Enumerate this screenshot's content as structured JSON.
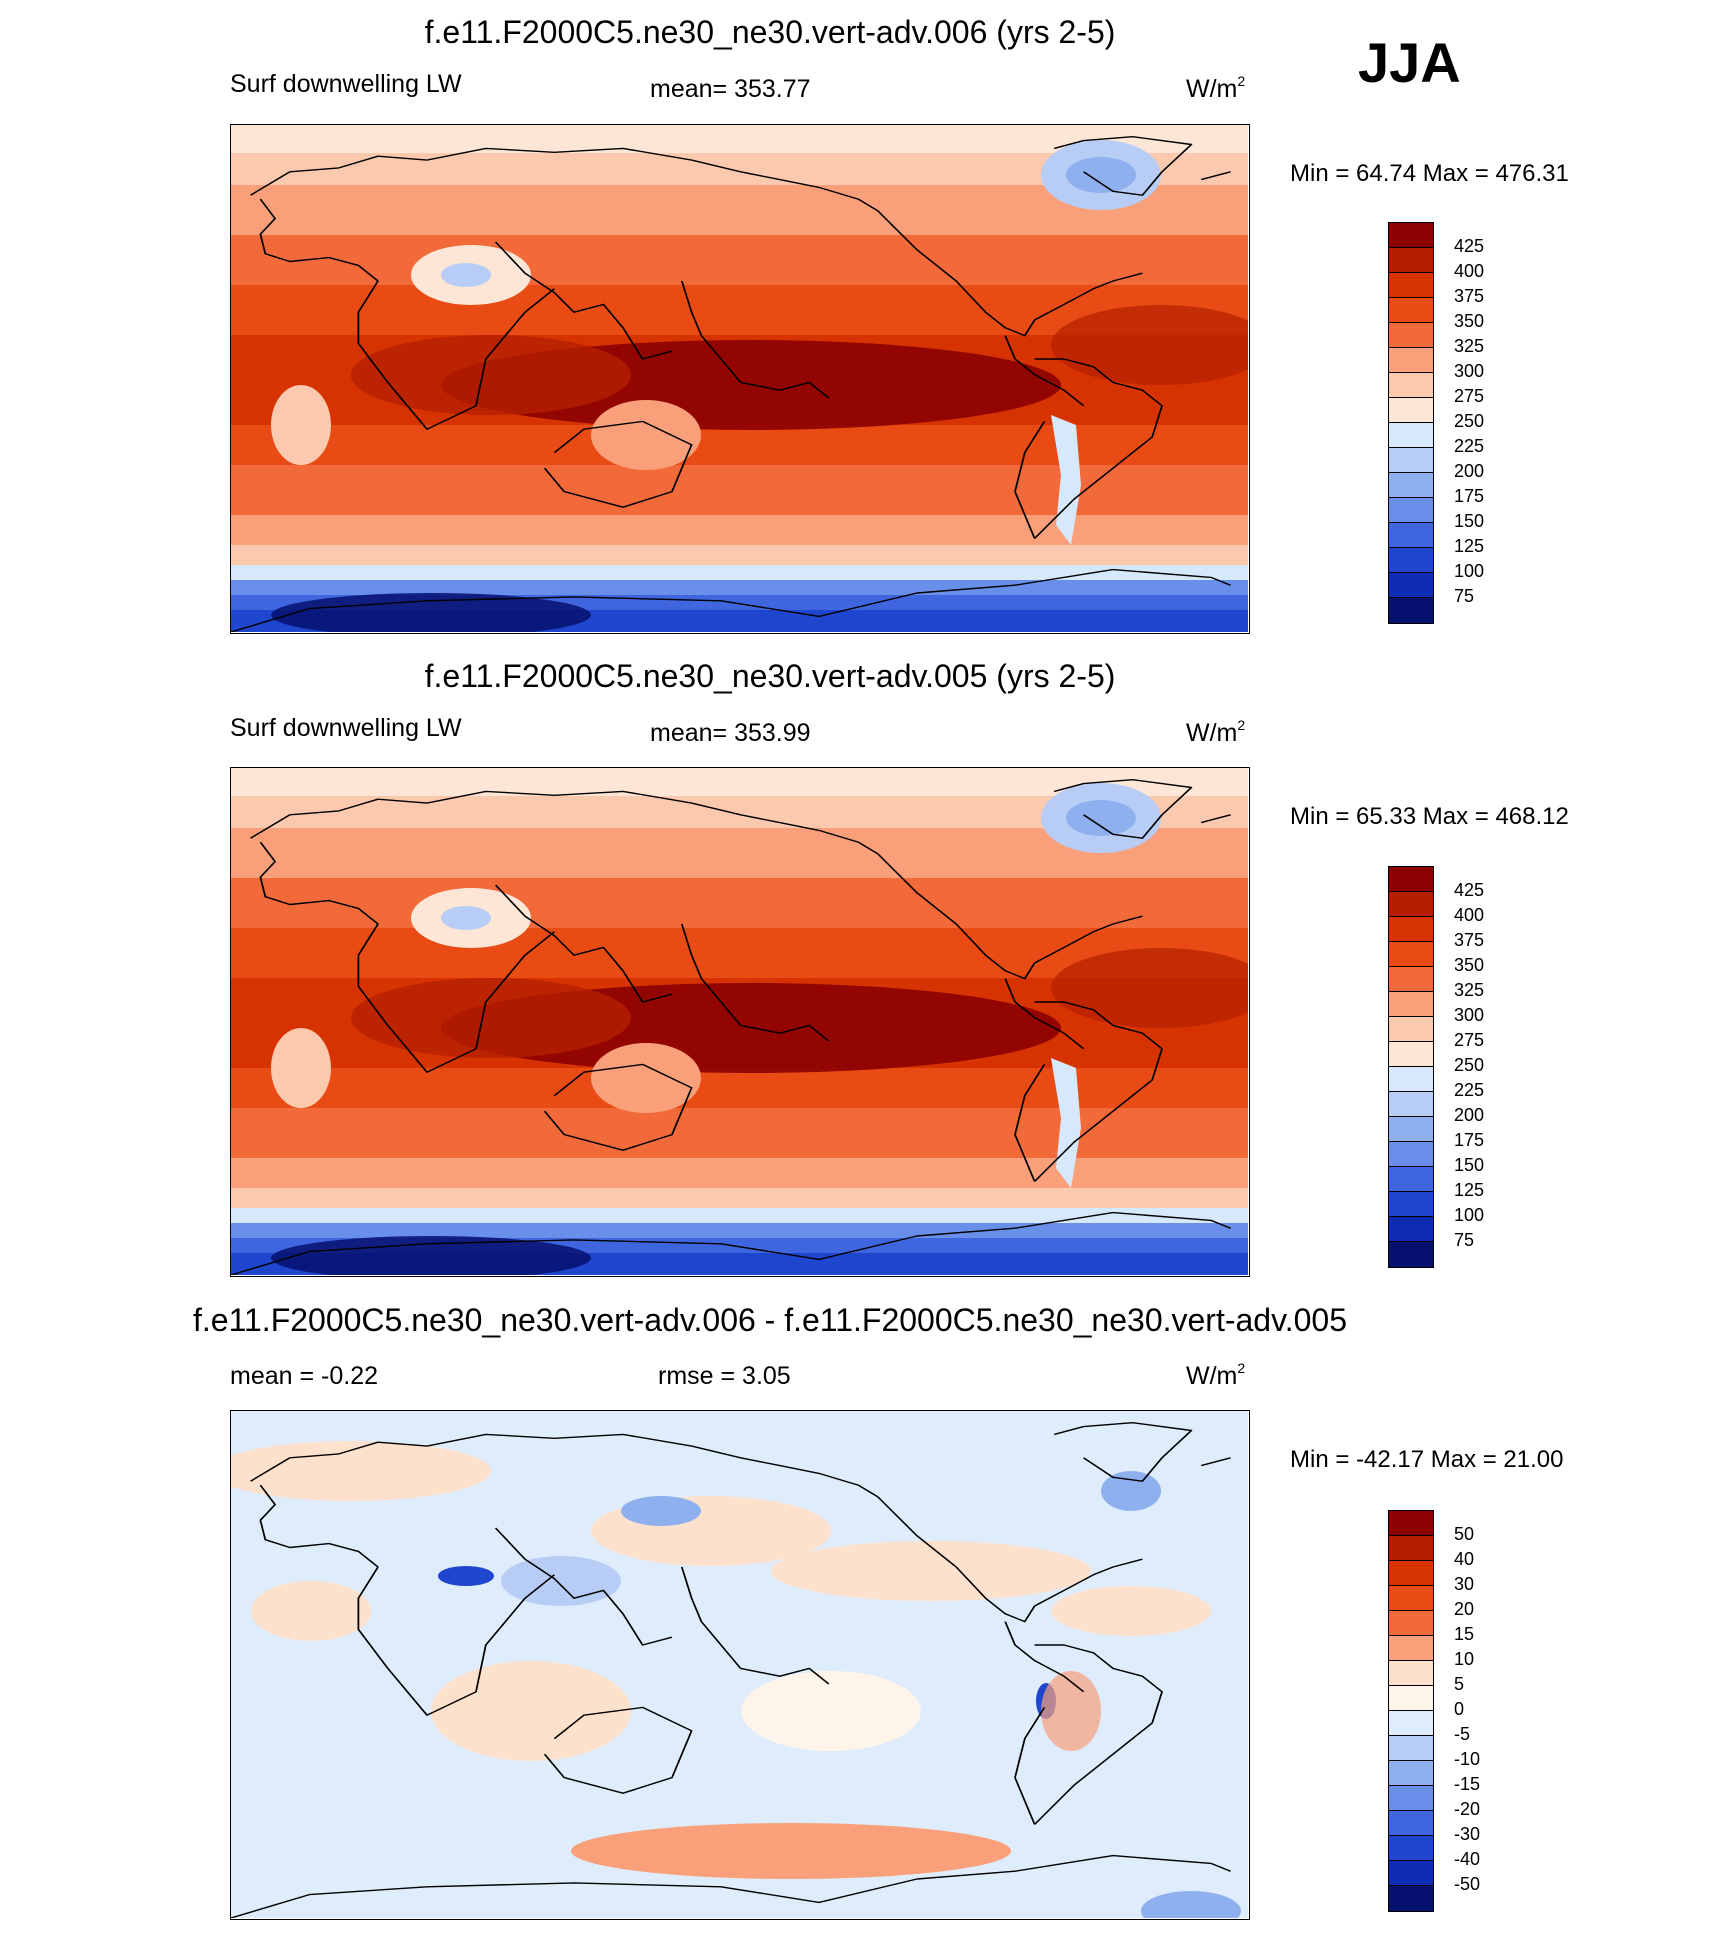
{
  "season": "JJA",
  "panels": [
    {
      "title": "f.e11.F2000C5.ne30_ne30.vert-adv.006 (yrs 2-5)",
      "left_label": "Surf downwelling LW",
      "center_label": "mean= 353.77",
      "units_base": "W/m",
      "units_exp": "2",
      "minmax": "Min =  64.74 Max = 476.31",
      "kind": "abs",
      "colorbar": {
        "labels": [
          "425",
          "400",
          "375",
          "350",
          "325",
          "300",
          "275",
          "250",
          "225",
          "200",
          "175",
          "150",
          "125",
          "100",
          "75"
        ],
        "colors": [
          "#8b0000",
          "#b51f00",
          "#d63300",
          "#e84c14",
          "#f26a3a",
          "#f9a07a",
          "#fbc9ae",
          "#fde6d6",
          "#d6e8fb",
          "#b7cdf6",
          "#8fb0ee",
          "#6a8fea",
          "#3f66df",
          "#1f46cf",
          "#0d2cb2",
          "#06106e"
        ]
      }
    },
    {
      "title": "f.e11.F2000C5.ne30_ne30.vert-adv.005 (yrs 2-5)",
      "left_label": "Surf downwelling LW",
      "center_label": "mean= 353.99",
      "units_base": "W/m",
      "units_exp": "2",
      "minmax": "Min =  65.33 Max = 468.12",
      "kind": "abs",
      "colorbar": {
        "labels": [
          "425",
          "400",
          "375",
          "350",
          "325",
          "300",
          "275",
          "250",
          "225",
          "200",
          "175",
          "150",
          "125",
          "100",
          "75"
        ],
        "colors": [
          "#8b0000",
          "#b51f00",
          "#d63300",
          "#e84c14",
          "#f26a3a",
          "#f9a07a",
          "#fbc9ae",
          "#fde6d6",
          "#d6e8fb",
          "#b7cdf6",
          "#8fb0ee",
          "#6a8fea",
          "#3f66df",
          "#1f46cf",
          "#0d2cb2",
          "#06106e"
        ]
      }
    },
    {
      "title": "f.e11.F2000C5.ne30_ne30.vert-adv.006 - f.e11.F2000C5.ne30_ne30.vert-adv.005",
      "left_label": "mean =  -0.22",
      "center_label": "rmse =   3.05",
      "units_base": "W/m",
      "units_exp": "2",
      "minmax": "Min = -42.17 Max =  21.00",
      "kind": "diff",
      "colorbar": {
        "labels": [
          "50",
          "40",
          "30",
          "20",
          "15",
          "10",
          "5",
          "0",
          "-5",
          "-10",
          "-15",
          "-20",
          "-30",
          "-40",
          "-50"
        ],
        "colors": [
          "#8b0000",
          "#b51f00",
          "#d63300",
          "#e84c14",
          "#f26a3a",
          "#f9a07a",
          "#fde1cc",
          "#fff4ea",
          "#deecfc",
          "#b7cdf6",
          "#8fb0ee",
          "#6a8fea",
          "#3f66df",
          "#1f46cf",
          "#0d2cb2",
          "#06106e"
        ]
      }
    }
  ]
}
